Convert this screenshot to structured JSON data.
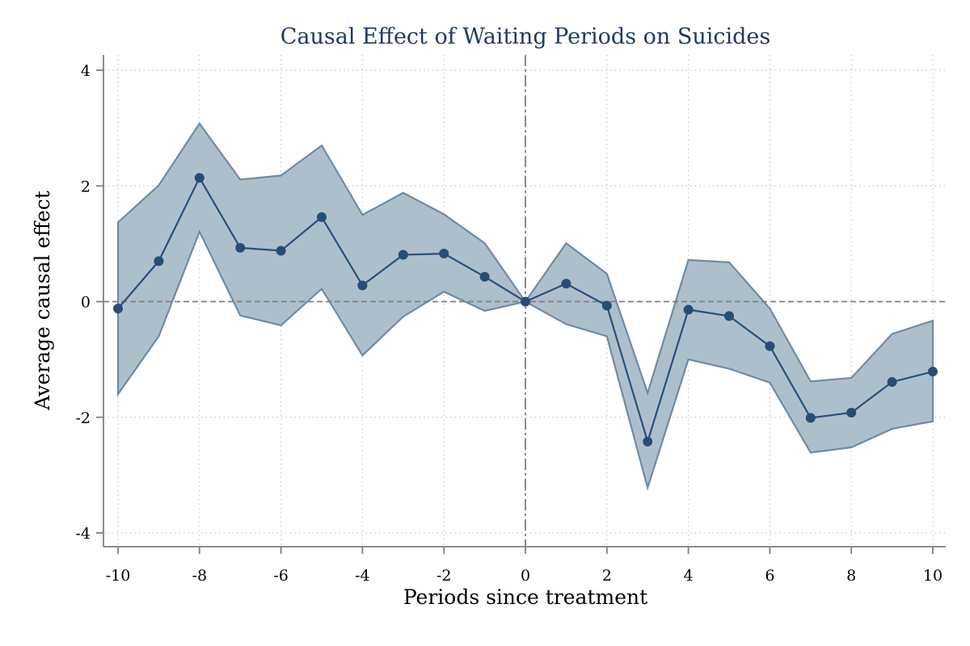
{
  "chart_data": {
    "type": "line",
    "title": "Causal Effect of Waiting Periods on Suicides",
    "xlabel": "Periods since treatment",
    "ylabel": "Average causal effect",
    "xlim": [
      -10,
      10
    ],
    "ylim": [
      -4,
      4
    ],
    "xticks": [
      -10,
      -8,
      -6,
      -4,
      -2,
      0,
      2,
      4,
      6,
      8,
      10
    ],
    "yticks": [
      -4,
      -2,
      0,
      2,
      4
    ],
    "x": [
      -10,
      -9,
      -8,
      -7,
      -6,
      -5,
      -4,
      -3,
      -2,
      -1,
      0,
      1,
      2,
      3,
      4,
      5,
      6,
      7,
      8,
      9,
      10
    ],
    "series": [
      {
        "values": [
          -0.12,
          0.7,
          2.14,
          0.93,
          0.88,
          1.46,
          0.28,
          0.81,
          0.83,
          0.43,
          0.0,
          0.31,
          -0.07,
          -2.42,
          -0.14,
          -0.25,
          -0.77,
          -2.01,
          -1.92,
          -1.39,
          -1.21
        ],
        "lower": [
          -1.6,
          -0.6,
          1.21,
          -0.24,
          -0.41,
          0.22,
          -0.93,
          -0.26,
          0.17,
          -0.16,
          0.0,
          -0.39,
          -0.6,
          -3.22,
          -1.0,
          -1.16,
          -1.4,
          -2.61,
          -2.52,
          -2.2,
          -2.07
        ],
        "upper": [
          1.37,
          2.01,
          3.08,
          2.11,
          2.18,
          2.7,
          1.5,
          1.88,
          1.51,
          1.01,
          0.0,
          1.01,
          0.48,
          -1.58,
          0.72,
          0.68,
          -0.12,
          -1.38,
          -1.32,
          -0.56,
          -0.33
        ]
      }
    ],
    "reference_lines": {
      "x": 0,
      "y": 0
    },
    "grid": true,
    "colors": {
      "band_fill": "#aebfcc",
      "band_edge": "#6f8ba4",
      "line": "#2a5079",
      "marker": "#264e74",
      "title": "#1f3a5f",
      "grid": "#c8c8c8",
      "reference": "#7f7f7f",
      "axis": "#7f7f7f"
    }
  }
}
